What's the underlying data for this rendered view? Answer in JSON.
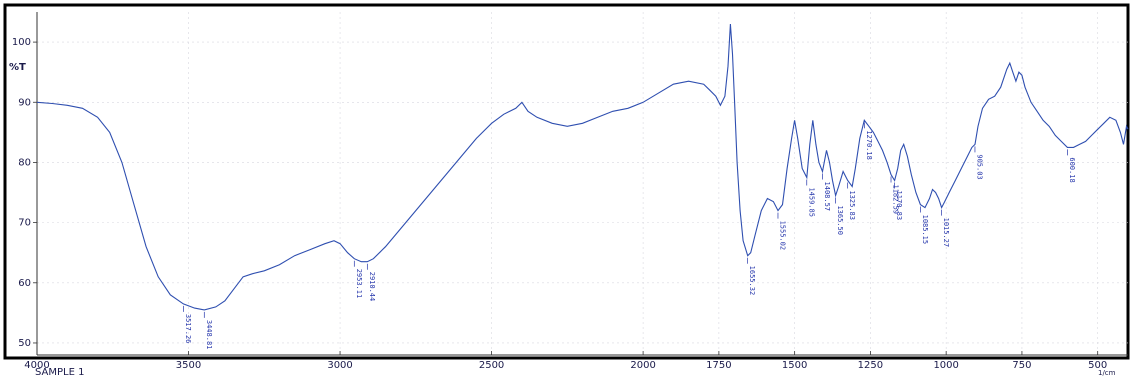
{
  "chart_data": {
    "type": "line",
    "title": "",
    "xlabel": "",
    "ylabel": "%T",
    "xlim": [
      4000,
      400
    ],
    "ylim": [
      48,
      105
    ],
    "x_ticks": [
      {
        "value": 4000,
        "label": "4000"
      },
      {
        "value": 3500,
        "label": "3500"
      },
      {
        "value": 3000,
        "label": "3000"
      },
      {
        "value": 2500,
        "label": "2500"
      },
      {
        "value": 2000,
        "label": "2000"
      },
      {
        "value": 1750,
        "label": "1750"
      },
      {
        "value": 1500,
        "label": "1500"
      },
      {
        "value": 1250,
        "label": "1250"
      },
      {
        "value": 1000,
        "label": "1000"
      },
      {
        "value": 750,
        "label": "750"
      },
      {
        "value": 500,
        "label": "500"
      }
    ],
    "y_ticks": [
      {
        "value": 100,
        "label": "100"
      },
      {
        "value": 90,
        "label": "90"
      },
      {
        "value": 80,
        "label": "80"
      },
      {
        "value": 70,
        "label": "70"
      },
      {
        "value": 60,
        "label": "60"
      },
      {
        "value": 50,
        "label": "50"
      }
    ],
    "footer_left": "SAMPLE 1",
    "footer_right": "1/cm",
    "series": [
      {
        "color": "#2f4fb0",
        "points": [
          [
            4000,
            90.0
          ],
          [
            3950,
            89.8
          ],
          [
            3900,
            89.5
          ],
          [
            3850,
            89.0
          ],
          [
            3800,
            87.5
          ],
          [
            3760,
            85.0
          ],
          [
            3720,
            80.0
          ],
          [
            3680,
            73.0
          ],
          [
            3640,
            66.0
          ],
          [
            3600,
            61.0
          ],
          [
            3560,
            58.0
          ],
          [
            3517,
            56.5
          ],
          [
            3480,
            55.8
          ],
          [
            3448,
            55.5
          ],
          [
            3410,
            56.0
          ],
          [
            3380,
            57.0
          ],
          [
            3350,
            59.0
          ],
          [
            3320,
            61.0
          ],
          [
            3290,
            61.5
          ],
          [
            3250,
            62.0
          ],
          [
            3200,
            63.0
          ],
          [
            3150,
            64.5
          ],
          [
            3100,
            65.5
          ],
          [
            3050,
            66.5
          ],
          [
            3020,
            67.0
          ],
          [
            3000,
            66.5
          ],
          [
            2975,
            65.0
          ],
          [
            2953,
            64.0
          ],
          [
            2930,
            63.5
          ],
          [
            2910,
            63.5
          ],
          [
            2890,
            64.0
          ],
          [
            2850,
            66.0
          ],
          [
            2800,
            69.0
          ],
          [
            2750,
            72.0
          ],
          [
            2700,
            75.0
          ],
          [
            2650,
            78.0
          ],
          [
            2600,
            81.0
          ],
          [
            2550,
            84.0
          ],
          [
            2500,
            86.5
          ],
          [
            2460,
            88.0
          ],
          [
            2420,
            89.0
          ],
          [
            2400,
            90.0
          ],
          [
            2380,
            88.5
          ],
          [
            2350,
            87.5
          ],
          [
            2300,
            86.5
          ],
          [
            2250,
            86.0
          ],
          [
            2200,
            86.5
          ],
          [
            2150,
            87.5
          ],
          [
            2100,
            88.5
          ],
          [
            2050,
            89.0
          ],
          [
            2000,
            90.0
          ],
          [
            1950,
            91.5
          ],
          [
            1900,
            93.0
          ],
          [
            1850,
            93.5
          ],
          [
            1800,
            93.0
          ],
          [
            1780,
            92.0
          ],
          [
            1760,
            91.0
          ],
          [
            1745,
            89.5
          ],
          [
            1730,
            91.0
          ],
          [
            1720,
            96.0
          ],
          [
            1712,
            103.0
          ],
          [
            1705,
            98.0
          ],
          [
            1698,
            90.0
          ],
          [
            1690,
            80.0
          ],
          [
            1680,
            72.0
          ],
          [
            1670,
            67.0
          ],
          [
            1655,
            64.5
          ],
          [
            1645,
            65.0
          ],
          [
            1630,
            68.0
          ],
          [
            1610,
            72.0
          ],
          [
            1590,
            74.0
          ],
          [
            1570,
            73.5
          ],
          [
            1555,
            72.0
          ],
          [
            1540,
            73.0
          ],
          [
            1525,
            79.0
          ],
          [
            1510,
            84.0
          ],
          [
            1500,
            87.0
          ],
          [
            1490,
            84.0
          ],
          [
            1475,
            79.0
          ],
          [
            1460,
            77.5
          ],
          [
            1450,
            83.0
          ],
          [
            1440,
            87.0
          ],
          [
            1430,
            83.0
          ],
          [
            1420,
            80.0
          ],
          [
            1408,
            78.5
          ],
          [
            1395,
            82.0
          ],
          [
            1385,
            80.0
          ],
          [
            1375,
            77.0
          ],
          [
            1365,
            74.5
          ],
          [
            1355,
            76.0
          ],
          [
            1340,
            78.5
          ],
          [
            1325,
            77.0
          ],
          [
            1310,
            76.0
          ],
          [
            1300,
            79.0
          ],
          [
            1285,
            84.0
          ],
          [
            1270,
            87.0
          ],
          [
            1255,
            86.0
          ],
          [
            1240,
            85.0
          ],
          [
            1225,
            83.5
          ],
          [
            1210,
            82.0
          ],
          [
            1195,
            80.0
          ],
          [
            1182,
            78.0
          ],
          [
            1170,
            77.0
          ],
          [
            1160,
            79.0
          ],
          [
            1150,
            82.0
          ],
          [
            1140,
            83.0
          ],
          [
            1128,
            81.0
          ],
          [
            1115,
            78.0
          ],
          [
            1100,
            75.0
          ],
          [
            1085,
            73.0
          ],
          [
            1070,
            72.5
          ],
          [
            1055,
            74.0
          ],
          [
            1045,
            75.5
          ],
          [
            1035,
            75.0
          ],
          [
            1025,
            74.0
          ],
          [
            1015,
            72.5
          ],
          [
            1005,
            73.5
          ],
          [
            990,
            75.0
          ],
          [
            970,
            77.0
          ],
          [
            950,
            79.0
          ],
          [
            930,
            81.0
          ],
          [
            915,
            82.5
          ],
          [
            905,
            83.0
          ],
          [
            895,
            86.0
          ],
          [
            880,
            89.0
          ],
          [
            860,
            90.5
          ],
          [
            840,
            91.0
          ],
          [
            820,
            92.5
          ],
          [
            800,
            95.5
          ],
          [
            790,
            96.5
          ],
          [
            780,
            95.0
          ],
          [
            770,
            93.5
          ],
          [
            760,
            95.0
          ],
          [
            750,
            94.5
          ],
          [
            740,
            92.5
          ],
          [
            720,
            90.0
          ],
          [
            700,
            88.5
          ],
          [
            680,
            87.0
          ],
          [
            660,
            86.0
          ],
          [
            640,
            84.5
          ],
          [
            620,
            83.5
          ],
          [
            600,
            82.5
          ],
          [
            580,
            82.5
          ],
          [
            560,
            83.0
          ],
          [
            540,
            83.5
          ],
          [
            520,
            84.5
          ],
          [
            500,
            85.5
          ],
          [
            480,
            86.5
          ],
          [
            460,
            87.5
          ],
          [
            440,
            87.0
          ],
          [
            425,
            85.0
          ],
          [
            415,
            83.0
          ],
          [
            405,
            86.0
          ],
          [
            400,
            85.5
          ]
        ]
      }
    ],
    "peak_labels": [
      {
        "x": 3517,
        "label": "3517.26"
      },
      {
        "x": 3448,
        "label": "3448.81"
      },
      {
        "x": 2953,
        "label": "2953.11"
      },
      {
        "x": 2910,
        "label": "2910.44"
      },
      {
        "x": 1655,
        "label": "1655.32"
      },
      {
        "x": 1555,
        "label": "1555.02"
      },
      {
        "x": 1460,
        "label": "1459.85"
      },
      {
        "x": 1408,
        "label": "1408.57"
      },
      {
        "x": 1365,
        "label": "1365.50"
      },
      {
        "x": 1325,
        "label": "1325.83"
      },
      {
        "x": 1270,
        "label": "1270.18"
      },
      {
        "x": 1182,
        "label": "1182.59"
      },
      {
        "x": 1170,
        "label": "1170.83"
      },
      {
        "x": 1085,
        "label": "1085.15"
      },
      {
        "x": 1015,
        "label": "1015.27"
      },
      {
        "x": 905,
        "label": "905.03"
      },
      {
        "x": 600,
        "label": "600.18"
      }
    ]
  }
}
